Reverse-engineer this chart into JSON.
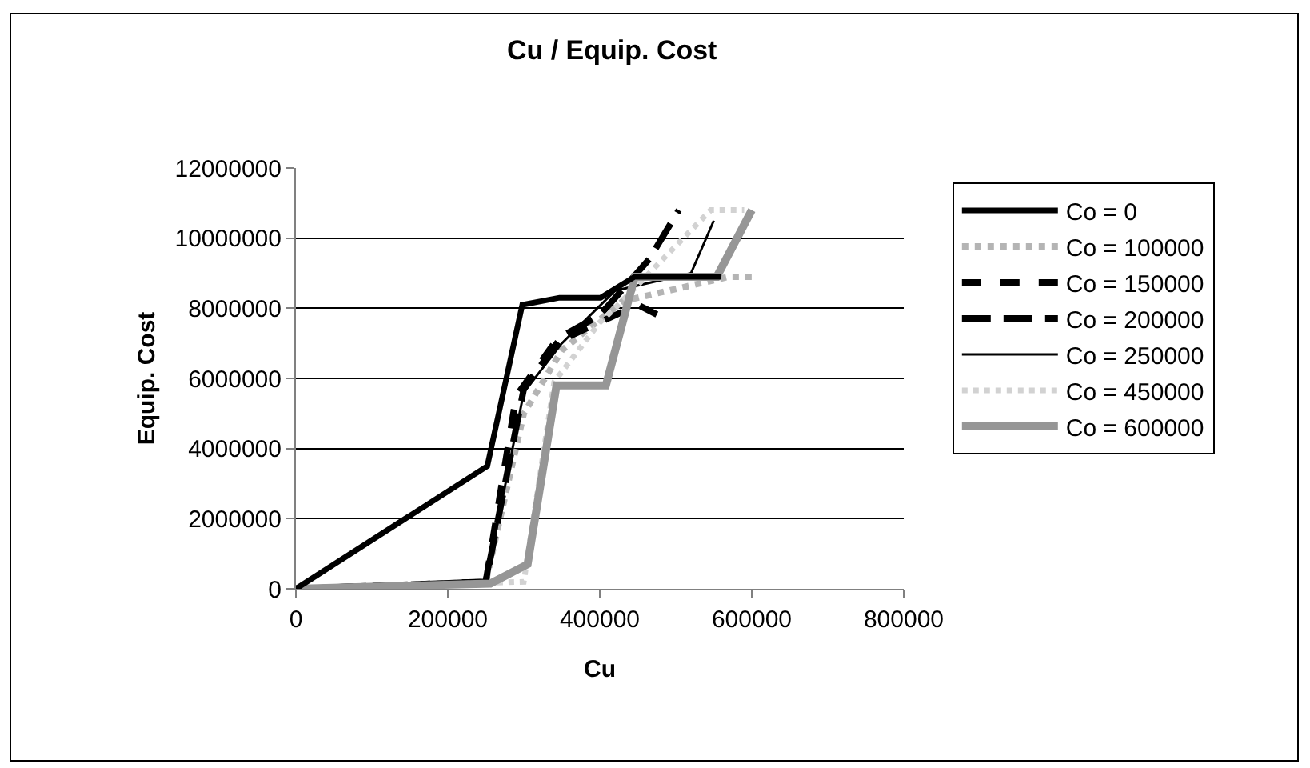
{
  "chart_data": {
    "type": "line",
    "title": "Cu / Equip. Cost",
    "xlabel": "Cu",
    "ylabel": "Equip. Cost",
    "xlim": [
      0,
      800000
    ],
    "xticks": [
      0,
      200000,
      400000,
      600000,
      800000
    ],
    "ylim": [
      0,
      12000000
    ],
    "yticks": [
      0,
      2000000,
      4000000,
      6000000,
      8000000,
      10000000,
      12000000
    ],
    "grid": "y",
    "legend": "right",
    "marker": "none",
    "series": [
      {
        "name": "Co = 0",
        "color": "#000000",
        "line_style": "solid",
        "x": [
          0,
          252000,
          298000,
          347000,
          401000,
          446000,
          560000
        ],
        "values": [
          0,
          3500000,
          8100000,
          8300000,
          8300000,
          8900000,
          8900000
        ]
      },
      {
        "name": "Co = 100000",
        "color": "#b4b4b4",
        "line_style": "dotted",
        "x": [
          0,
          250000,
          300000,
          350000,
          430000,
          570000,
          600000
        ],
        "values": [
          0,
          200000,
          5000000,
          6800000,
          8200000,
          8900000,
          8900000
        ]
      },
      {
        "name": "Co = 150000",
        "color": "#000000",
        "line_style": "dashed",
        "x": [
          0,
          250000,
          290000,
          340000,
          400000,
          450000,
          477000
        ],
        "values": [
          0,
          200000,
          5500000,
          7000000,
          7600000,
          8100000,
          7800000
        ]
      },
      {
        "name": "Co = 200000",
        "color": "#000000",
        "line_style": "dashed",
        "x": [
          0,
          250000,
          300000,
          350000,
          400000,
          465000,
          504000
        ],
        "values": [
          0,
          200000,
          5700000,
          7200000,
          7800000,
          9400000,
          10800000
        ]
      },
      {
        "name": "Co = 250000",
        "color": "#000000",
        "line_style": "solid",
        "x": [
          0,
          250000,
          300000,
          350000,
          420000,
          520000,
          550000
        ],
        "values": [
          0,
          200000,
          5600000,
          7000000,
          8500000,
          9000000,
          10500000
        ]
      },
      {
        "name": "Co = 450000",
        "color": "#d2d2d2",
        "line_style": "dotted",
        "x": [
          0,
          300000,
          340000,
          400000,
          420000,
          546000,
          590000
        ],
        "values": [
          0,
          200000,
          5900000,
          7600000,
          8000000,
          10800000,
          10800000
        ]
      },
      {
        "name": "Co = 600000",
        "color": "#969696",
        "line_style": "solid",
        "x": [
          0,
          256000,
          305000,
          343000,
          408000,
          446000,
          554000,
          600000
        ],
        "values": [
          0,
          150000,
          700000,
          5800000,
          5800000,
          8900000,
          8900000,
          10800000
        ]
      }
    ]
  }
}
